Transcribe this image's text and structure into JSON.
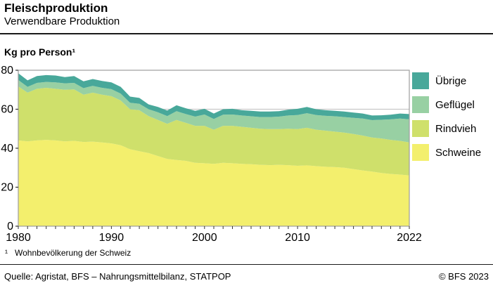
{
  "chart_data": {
    "type": "area",
    "stacked": true,
    "title": "Fleischproduktion",
    "subtitle": "Verwendbare Produktion",
    "ylabel": "Kg pro Person¹",
    "ylim": [
      0,
      80
    ],
    "yticks": [
      0,
      20,
      40,
      60,
      80
    ],
    "x": [
      1980,
      1981,
      1982,
      1983,
      1984,
      1985,
      1986,
      1987,
      1988,
      1989,
      1990,
      1991,
      1992,
      1993,
      1994,
      1995,
      1996,
      1997,
      1998,
      1999,
      2000,
      2001,
      2002,
      2003,
      2004,
      2005,
      2006,
      2007,
      2008,
      2009,
      2010,
      2011,
      2012,
      2013,
      2014,
      2015,
      2016,
      2017,
      2018,
      2019,
      2020,
      2021,
      2022
    ],
    "xtick_labels": [
      1980,
      1990,
      2000,
      2010,
      2022
    ],
    "grid": "horizontal",
    "legend_position": "right",
    "legend": [
      "Übrige",
      "Geflügel",
      "Rindvieh",
      "Schweine"
    ],
    "series": [
      {
        "name": "Schweine",
        "color": "#f3ef6d",
        "values": [
          44.0,
          43.5,
          44.0,
          44.3,
          44.0,
          43.5,
          43.8,
          43.2,
          43.4,
          43.0,
          42.5,
          41.5,
          39.5,
          38.5,
          37.5,
          36.0,
          34.5,
          34.0,
          33.5,
          32.5,
          32.3,
          32.0,
          32.5,
          32.3,
          32.0,
          31.8,
          31.5,
          31.3,
          31.5,
          31.3,
          31.0,
          31.2,
          30.8,
          30.5,
          30.3,
          30.0,
          29.3,
          28.6,
          28.0,
          27.3,
          26.8,
          26.5,
          26.0
        ]
      },
      {
        "name": "Rindvieh",
        "color": "#cfe06b",
        "values": [
          27.7,
          25.0,
          26.5,
          26.7,
          26.5,
          26.5,
          26.4,
          24.3,
          25.1,
          24.5,
          24.2,
          23.0,
          20.5,
          21.0,
          19.0,
          18.5,
          18.0,
          20.5,
          19.5,
          19.0,
          19.2,
          17.5,
          19.0,
          19.2,
          19.0,
          18.7,
          18.5,
          18.5,
          18.3,
          18.7,
          18.8,
          19.3,
          18.7,
          18.5,
          18.2,
          18.0,
          18.0,
          17.9,
          17.5,
          17.7,
          17.5,
          17.3,
          17.0
        ]
      },
      {
        "name": "Geflügel",
        "color": "#98d0a3",
        "values": [
          3.3,
          3.0,
          3.0,
          3.0,
          3.3,
          3.3,
          3.3,
          3.3,
          3.5,
          3.5,
          3.6,
          3.5,
          3.3,
          3.3,
          3.5,
          3.9,
          4.0,
          4.5,
          4.5,
          4.7,
          5.8,
          5.5,
          5.7,
          5.8,
          5.8,
          5.9,
          6.0,
          6.2,
          6.4,
          6.8,
          7.2,
          7.5,
          7.5,
          7.6,
          7.9,
          8.0,
          8.3,
          8.7,
          8.9,
          9.6,
          10.5,
          11.4,
          11.8
        ]
      },
      {
        "name": "Übrige",
        "color": "#48a89a",
        "values": [
          3.5,
          3.3,
          3.5,
          3.5,
          3.5,
          3.2,
          3.5,
          3.5,
          3.5,
          3.5,
          3.5,
          3.5,
          3.2,
          3.0,
          2.5,
          2.8,
          2.8,
          3.0,
          3.0,
          3.0,
          2.9,
          2.8,
          2.8,
          2.9,
          2.7,
          2.8,
          2.8,
          2.8,
          2.8,
          3.0,
          3.2,
          3.2,
          3.0,
          2.9,
          2.8,
          2.8,
          2.7,
          2.6,
          2.4,
          2.3,
          2.4,
          2.6,
          2.7
        ]
      }
    ],
    "axis_colors": {
      "grid": "#c8c8c8",
      "border": "#9e9e9e",
      "tick": "#333333"
    }
  },
  "footer": {
    "footnote_marker": "¹",
    "footnote_text": "Wohnbevölkerung der Schweiz",
    "source": "Quelle: Agristat, BFS – Nahrungsmittelbilanz, STATPOP",
    "copyright": "© BFS 2023"
  }
}
